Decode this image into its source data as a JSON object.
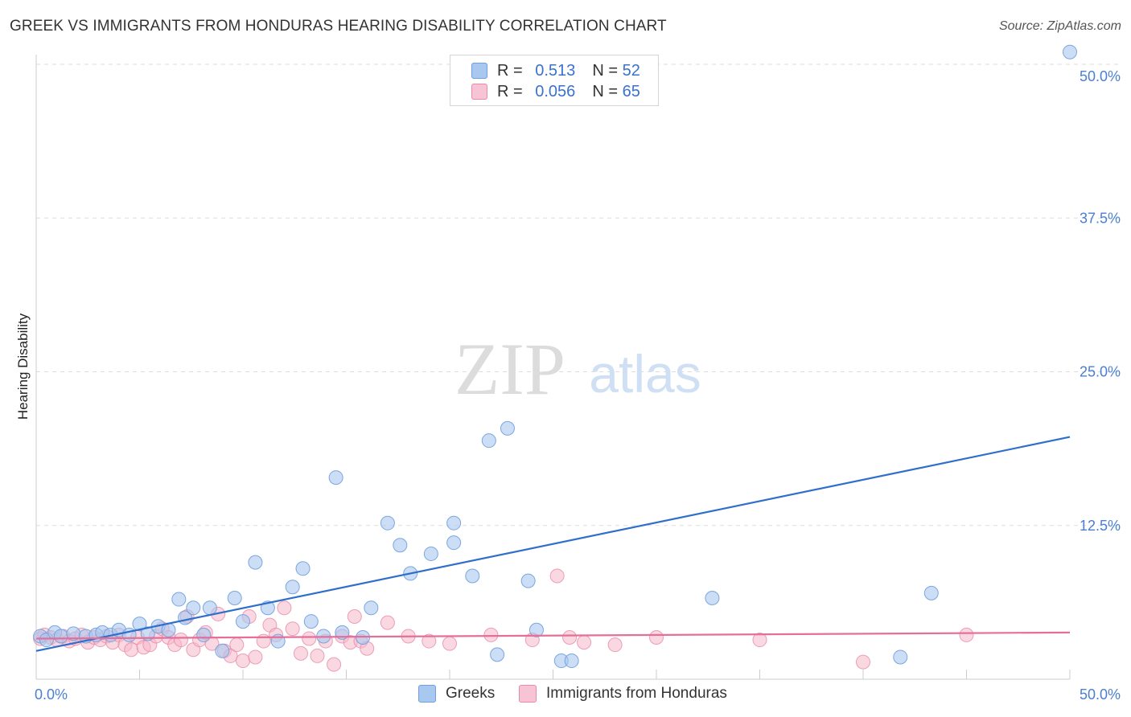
{
  "title": "GREEK VS IMMIGRANTS FROM HONDURAS HEARING DISABILITY CORRELATION CHART",
  "source": "Source: ZipAtlas.com",
  "watermark": {
    "zip": "ZIP",
    "atlas": "atlas"
  },
  "legend": {
    "greeks": {
      "r_label": "R =",
      "r_value": "0.513",
      "n_label": "N =",
      "n_value": "52"
    },
    "honduras": {
      "r_label": "R =",
      "r_value": "0.056",
      "n_label": "N =",
      "n_value": "65"
    }
  },
  "colors": {
    "greeks_fill": "#a8c8f0",
    "greeks_stroke": "#6f9fdc",
    "greeks_line": "#2f6fcc",
    "honduras_fill": "#f6b8cb",
    "honduras_stroke": "#e88aa8",
    "honduras_line": "#e46f98",
    "grid": "#dddddd",
    "tick_text": "#4a7fd4"
  },
  "chart_data": {
    "type": "scatter",
    "title": "GREEK VS IMMIGRANTS FROM HONDURAS HEARING DISABILITY CORRELATION CHART",
    "xlabel": "",
    "ylabel": "Hearing Disability",
    "xlim": [
      0,
      50
    ],
    "ylim": [
      0,
      52
    ],
    "x_tick_labels": [
      "0.0%",
      "50.0%"
    ],
    "y_ticks": [
      12.5,
      25.0,
      37.5,
      50.0
    ],
    "y_tick_labels": [
      "12.5%",
      "25.0%",
      "37.5%",
      "50.0%"
    ],
    "grid": true,
    "series": [
      {
        "name": "Greeks",
        "r": 0.513,
        "n": 52,
        "trend": {
          "x": [
            0,
            50
          ],
          "y": [
            2.3,
            19.7
          ]
        },
        "points": [
          {
            "x": 0.2,
            "y": 3.5
          },
          {
            "x": 0.5,
            "y": 3.2
          },
          {
            "x": 0.9,
            "y": 3.8
          },
          {
            "x": 1.2,
            "y": 3.5
          },
          {
            "x": 1.8,
            "y": 3.7
          },
          {
            "x": 2.4,
            "y": 3.5
          },
          {
            "x": 2.9,
            "y": 3.6
          },
          {
            "x": 3.2,
            "y": 3.8
          },
          {
            "x": 3.6,
            "y": 3.6
          },
          {
            "x": 4.0,
            "y": 4.0
          },
          {
            "x": 4.5,
            "y": 3.6
          },
          {
            "x": 5.0,
            "y": 4.5
          },
          {
            "x": 5.4,
            "y": 3.7
          },
          {
            "x": 5.9,
            "y": 4.3
          },
          {
            "x": 6.4,
            "y": 4.0
          },
          {
            "x": 6.9,
            "y": 6.5
          },
          {
            "x": 7.2,
            "y": 5.0
          },
          {
            "x": 7.6,
            "y": 5.8
          },
          {
            "x": 8.1,
            "y": 3.6
          },
          {
            "x": 8.4,
            "y": 5.8
          },
          {
            "x": 9.0,
            "y": 2.3
          },
          {
            "x": 9.6,
            "y": 6.6
          },
          {
            "x": 10.0,
            "y": 4.7
          },
          {
            "x": 10.6,
            "y": 9.5
          },
          {
            "x": 11.2,
            "y": 5.8
          },
          {
            "x": 11.7,
            "y": 3.1
          },
          {
            "x": 12.4,
            "y": 7.5
          },
          {
            "x": 12.9,
            "y": 9.0
          },
          {
            "x": 13.3,
            "y": 4.7
          },
          {
            "x": 13.9,
            "y": 3.5
          },
          {
            "x": 14.5,
            "y": 16.4
          },
          {
            "x": 14.8,
            "y": 3.8
          },
          {
            "x": 15.8,
            "y": 3.4
          },
          {
            "x": 16.2,
            "y": 5.8
          },
          {
            "x": 17.0,
            "y": 12.7
          },
          {
            "x": 17.6,
            "y": 10.9
          },
          {
            "x": 18.1,
            "y": 8.6
          },
          {
            "x": 19.1,
            "y": 10.2
          },
          {
            "x": 20.2,
            "y": 11.1
          },
          {
            "x": 20.2,
            "y": 12.7
          },
          {
            "x": 21.1,
            "y": 8.4
          },
          {
            "x": 21.9,
            "y": 19.4
          },
          {
            "x": 22.3,
            "y": 2.0
          },
          {
            "x": 22.8,
            "y": 20.4
          },
          {
            "x": 23.8,
            "y": 8.0
          },
          {
            "x": 24.2,
            "y": 4.0
          },
          {
            "x": 25.4,
            "y": 1.5
          },
          {
            "x": 25.9,
            "y": 1.5
          },
          {
            "x": 32.7,
            "y": 6.6
          },
          {
            "x": 41.8,
            "y": 1.8
          },
          {
            "x": 43.3,
            "y": 7.0
          },
          {
            "x": 50.0,
            "y": 51.0
          }
        ]
      },
      {
        "name": "Immigrants from Honduras",
        "r": 0.056,
        "n": 65,
        "trend": {
          "x": [
            0,
            50
          ],
          "y": [
            3.3,
            3.8
          ]
        },
        "points": [
          {
            "x": 0.2,
            "y": 3.3
          },
          {
            "x": 0.4,
            "y": 3.6
          },
          {
            "x": 0.7,
            "y": 3.4
          },
          {
            "x": 1.0,
            "y": 3.2
          },
          {
            "x": 1.3,
            "y": 3.5
          },
          {
            "x": 1.6,
            "y": 3.1
          },
          {
            "x": 1.9,
            "y": 3.3
          },
          {
            "x": 2.2,
            "y": 3.6
          },
          {
            "x": 2.5,
            "y": 3.0
          },
          {
            "x": 2.8,
            "y": 3.4
          },
          {
            "x": 3.1,
            "y": 3.2
          },
          {
            "x": 3.4,
            "y": 3.5
          },
          {
            "x": 3.7,
            "y": 3.0
          },
          {
            "x": 4.0,
            "y": 3.6
          },
          {
            "x": 4.3,
            "y": 2.8
          },
          {
            "x": 4.6,
            "y": 2.4
          },
          {
            "x": 4.9,
            "y": 3.4
          },
          {
            "x": 5.2,
            "y": 2.6
          },
          {
            "x": 5.5,
            "y": 2.8
          },
          {
            "x": 5.8,
            "y": 3.5
          },
          {
            "x": 6.1,
            "y": 4.1
          },
          {
            "x": 6.4,
            "y": 3.4
          },
          {
            "x": 6.7,
            "y": 2.8
          },
          {
            "x": 7.0,
            "y": 3.2
          },
          {
            "x": 7.3,
            "y": 5.1
          },
          {
            "x": 7.6,
            "y": 2.4
          },
          {
            "x": 7.9,
            "y": 3.2
          },
          {
            "x": 8.2,
            "y": 3.8
          },
          {
            "x": 8.5,
            "y": 2.9
          },
          {
            "x": 8.8,
            "y": 5.3
          },
          {
            "x": 9.1,
            "y": 2.3
          },
          {
            "x": 9.4,
            "y": 1.9
          },
          {
            "x": 9.7,
            "y": 2.8
          },
          {
            "x": 10.0,
            "y": 1.5
          },
          {
            "x": 10.3,
            "y": 5.1
          },
          {
            "x": 10.6,
            "y": 1.8
          },
          {
            "x": 11.0,
            "y": 3.1
          },
          {
            "x": 11.3,
            "y": 4.4
          },
          {
            "x": 11.6,
            "y": 3.6
          },
          {
            "x": 12.0,
            "y": 5.8
          },
          {
            "x": 12.4,
            "y": 4.1
          },
          {
            "x": 12.8,
            "y": 2.1
          },
          {
            "x": 13.2,
            "y": 3.3
          },
          {
            "x": 13.6,
            "y": 1.9
          },
          {
            "x": 14.0,
            "y": 3.1
          },
          {
            "x": 14.4,
            "y": 1.2
          },
          {
            "x": 14.8,
            "y": 3.5
          },
          {
            "x": 15.2,
            "y": 3.0
          },
          {
            "x": 15.4,
            "y": 5.1
          },
          {
            "x": 15.7,
            "y": 3.1
          },
          {
            "x": 16.0,
            "y": 2.5
          },
          {
            "x": 17.0,
            "y": 4.6
          },
          {
            "x": 18.0,
            "y": 3.5
          },
          {
            "x": 19.0,
            "y": 3.1
          },
          {
            "x": 20.0,
            "y": 2.9
          },
          {
            "x": 22.0,
            "y": 3.6
          },
          {
            "x": 24.0,
            "y": 3.2
          },
          {
            "x": 25.2,
            "y": 8.4
          },
          {
            "x": 25.8,
            "y": 3.4
          },
          {
            "x": 26.5,
            "y": 3.0
          },
          {
            "x": 28.0,
            "y": 2.8
          },
          {
            "x": 30.0,
            "y": 3.4
          },
          {
            "x": 35.0,
            "y": 3.2
          },
          {
            "x": 40.0,
            "y": 1.4
          },
          {
            "x": 45.0,
            "y": 3.6
          }
        ]
      }
    ]
  }
}
